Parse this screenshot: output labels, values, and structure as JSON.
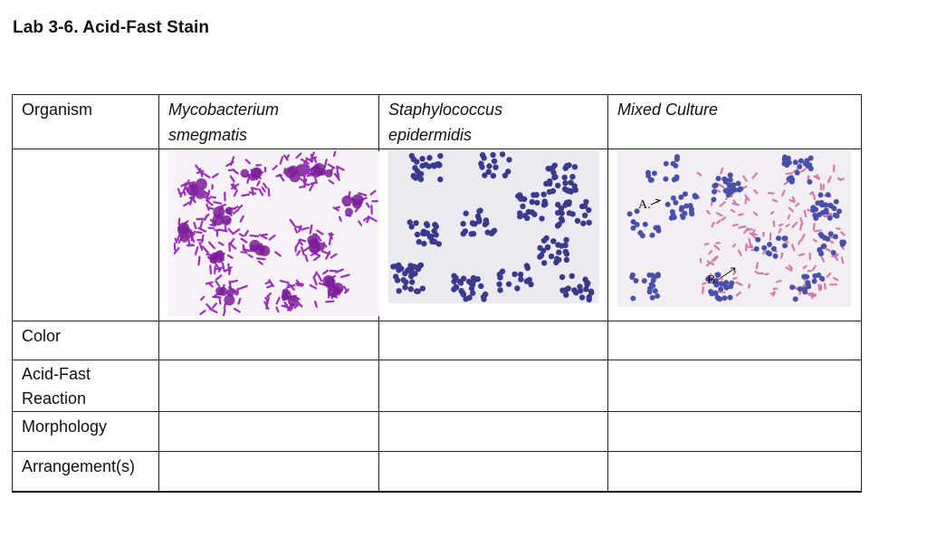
{
  "title": "Lab 3-6. Acid-Fast Stain",
  "header": {
    "organism_label": "Organism",
    "col1": "Mycobacterium smegmatis",
    "col1_line1": "Mycobacterium",
    "col1_line2": "smegmatis",
    "col2": "Staphylococcus epidermidis",
    "col2_line1": "Staphylococcus",
    "col2_line2": "epidermidis",
    "col3": "Mixed Culture"
  },
  "rows": {
    "color": "Color",
    "acid_fast_line1": "Acid-Fast",
    "acid_fast_line2": "Reaction",
    "morphology": "Morphology",
    "arrangement": "Arrangement(s)"
  },
  "images": {
    "mixed_label_a": "A.",
    "mixed_label_b": "B."
  },
  "colors": {
    "magenta_stain": "#9a2fb8",
    "violet_stain": "#3a3a8c",
    "pink_stain": "#d27aa8",
    "background_field": "#f6f2f8"
  }
}
